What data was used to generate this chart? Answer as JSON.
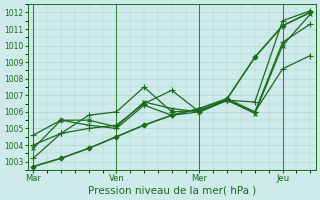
{
  "background_color": "#ceeaea",
  "grid_color": "#aacece",
  "line_color": "#1a6b1a",
  "ylim": [
    1002.5,
    1012.5
  ],
  "yticks": [
    1003,
    1004,
    1005,
    1006,
    1007,
    1008,
    1009,
    1010,
    1011,
    1012
  ],
  "xlabel": "Pression niveau de la mer( hPa )",
  "xlabel_fontsize": 7.5,
  "xtick_labels": [
    "Mar",
    "Ven",
    "Mer",
    "Jeu"
  ],
  "xtick_positions": [
    0,
    30,
    60,
    90
  ],
  "xvlines": [
    0,
    30,
    60,
    90
  ],
  "xlim": [
    -2,
    102
  ],
  "series": [
    {
      "x": [
        0,
        10,
        20,
        30,
        40,
        50,
        60,
        70,
        80,
        90,
        100
      ],
      "y": [
        1002.7,
        1003.2,
        1003.8,
        1004.5,
        1005.2,
        1005.8,
        1006.2,
        1006.8,
        1009.3,
        1011.2,
        1012.0
      ],
      "marker": "D",
      "ms": 2.5,
      "lw": 1.2
    },
    {
      "x": [
        0,
        10,
        20,
        30,
        40,
        50,
        60,
        70,
        80,
        90,
        100
      ],
      "y": [
        1003.2,
        1004.7,
        1005.0,
        1005.2,
        1006.5,
        1007.3,
        1006.0,
        1006.7,
        1006.6,
        1011.5,
        1012.1
      ],
      "marker": "+",
      "ms": 4,
      "lw": 0.9
    },
    {
      "x": [
        0,
        10,
        20,
        30,
        40,
        50,
        60,
        70,
        80,
        90,
        100
      ],
      "y": [
        1003.8,
        1005.5,
        1005.5,
        1005.1,
        1006.6,
        1006.2,
        1006.0,
        1006.7,
        1005.9,
        1010.0,
        1011.9
      ],
      "marker": "x",
      "ms": 3.5,
      "lw": 0.9
    },
    {
      "x": [
        0,
        10,
        20,
        30,
        40,
        50,
        60,
        70,
        80,
        90,
        100
      ],
      "y": [
        1004.6,
        1005.5,
        1005.2,
        1005.0,
        1006.4,
        1005.8,
        1006.0,
        1006.8,
        1006.0,
        1010.2,
        1011.3
      ],
      "marker": "+",
      "ms": 4,
      "lw": 0.9
    },
    {
      "x": [
        0,
        10,
        20,
        30,
        40,
        50,
        60,
        70,
        80,
        90,
        100
      ],
      "y": [
        1004.0,
        1004.7,
        1005.8,
        1006.0,
        1007.5,
        1006.0,
        1006.1,
        1006.7,
        1006.0,
        1008.6,
        1009.4
      ],
      "marker": "+",
      "ms": 4,
      "lw": 0.9
    }
  ]
}
